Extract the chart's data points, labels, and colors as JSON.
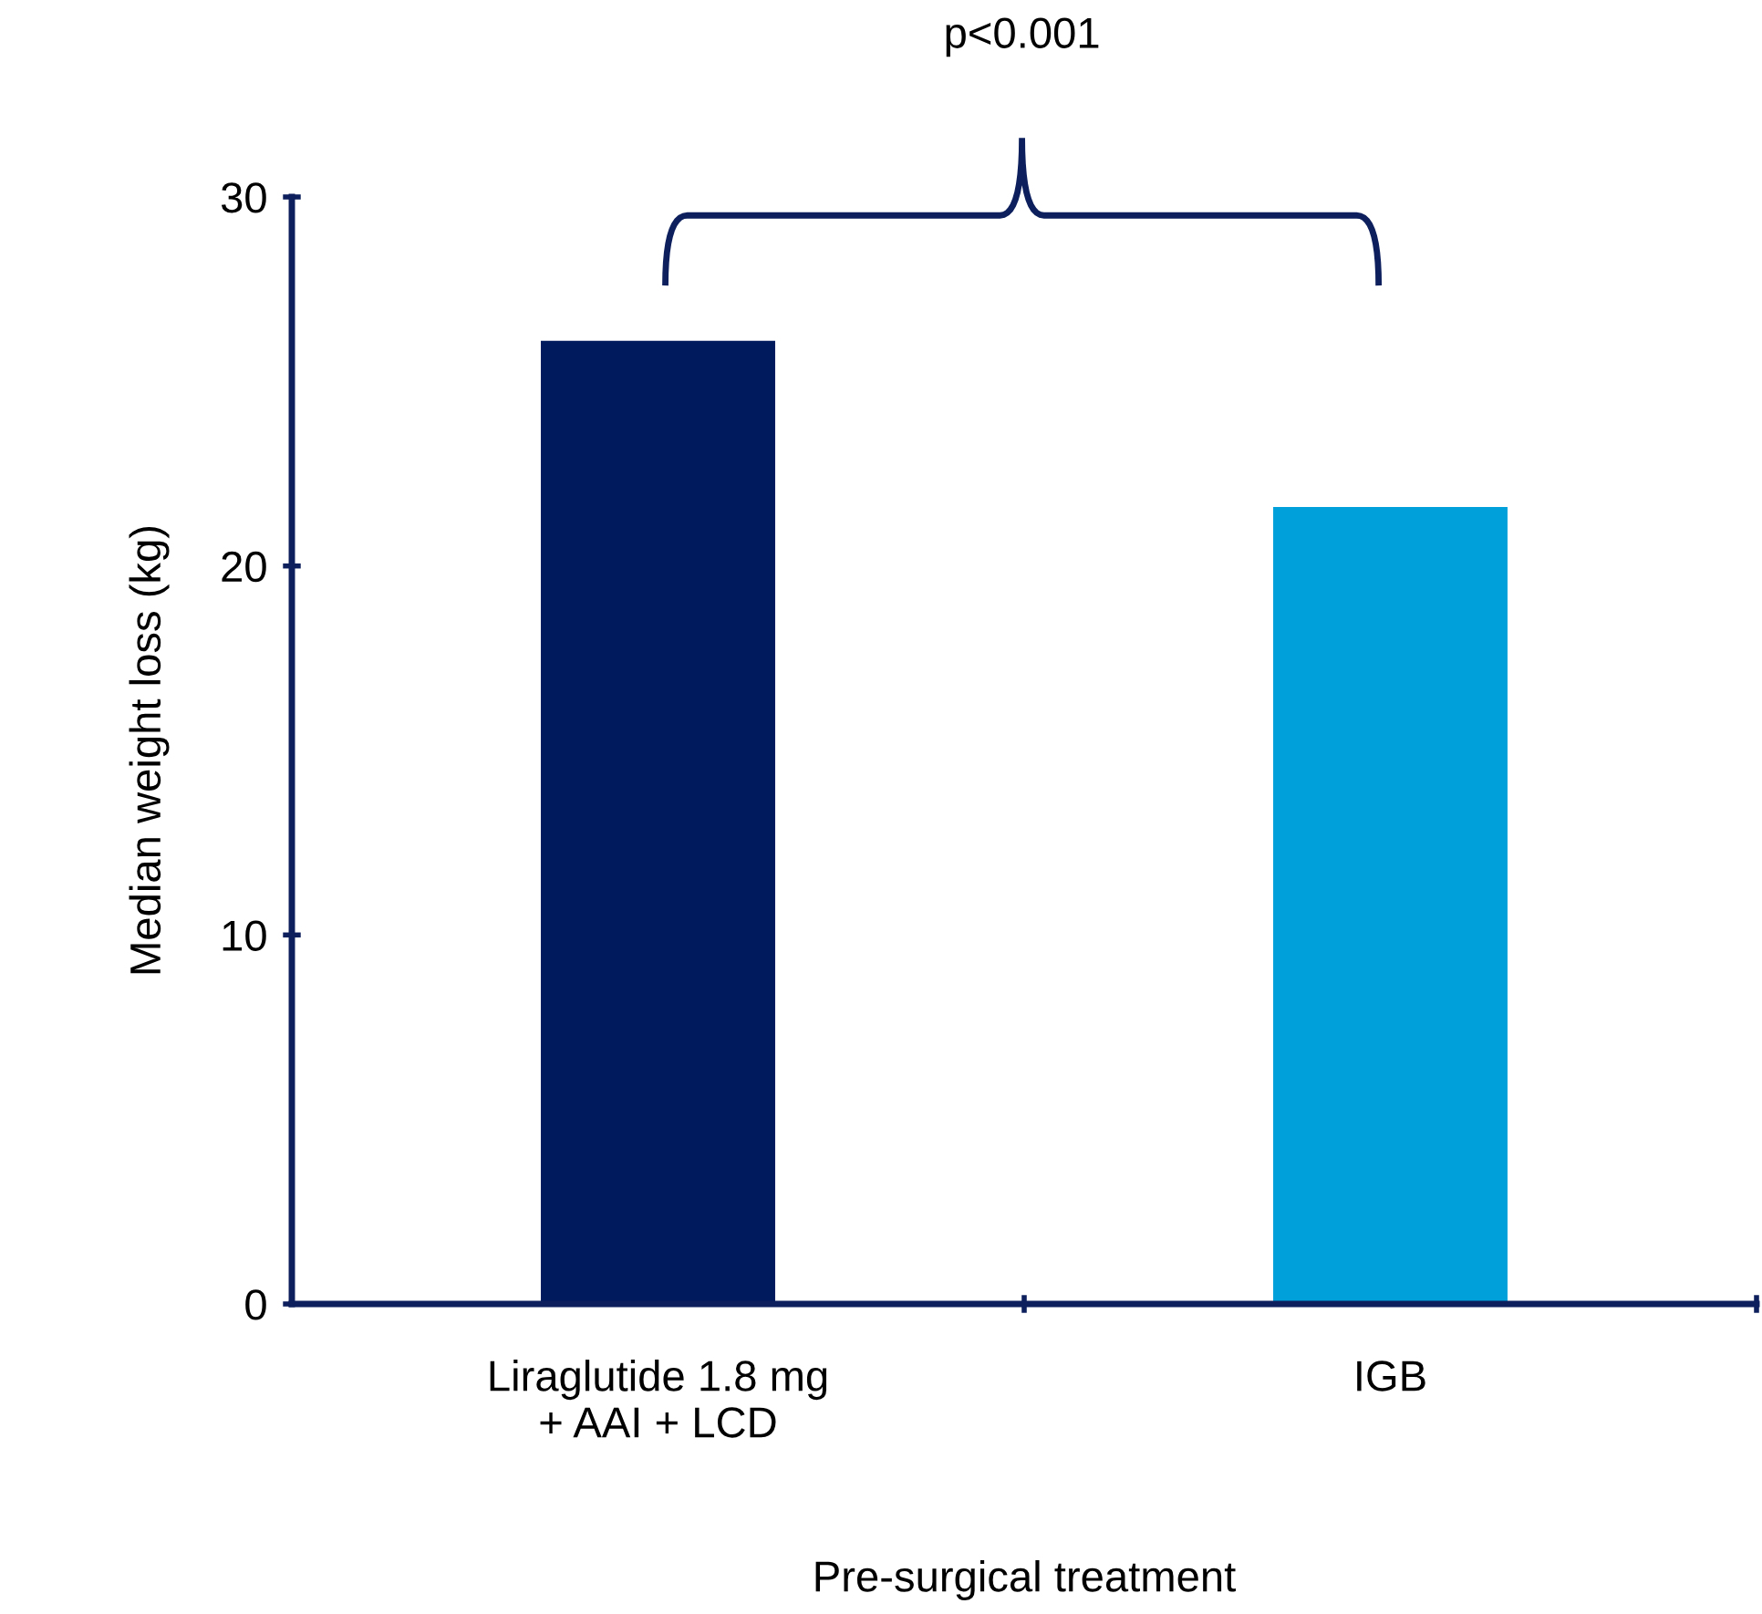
{
  "chart_data": {
    "type": "bar",
    "categories": [
      "Liraglutide 1.8 mg\n+ AAI + LCD",
      "IGB"
    ],
    "values": [
      26.1,
      21.6
    ],
    "colors": [
      "#001a5e",
      "#00a0da"
    ],
    "ylabel": "Median weight loss (kg)",
    "xlabel": "Pre-surgical treatment",
    "ylim": [
      0,
      30
    ],
    "yticks": [
      0,
      10,
      20,
      30
    ],
    "annotations": [
      "p<0.001"
    ],
    "grid": false,
    "legend": false
  }
}
